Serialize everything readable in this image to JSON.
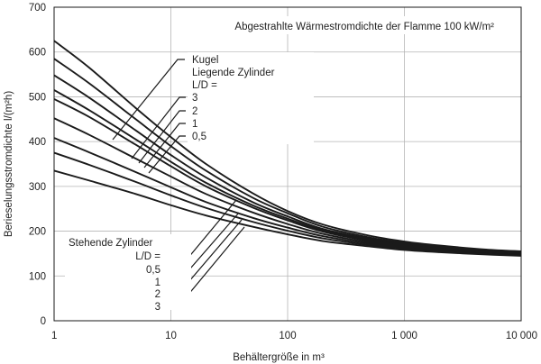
{
  "chart_data": {
    "type": "line",
    "title": "Abgestrahlte Wärmestromdichte der Flamme 100 kW/m²",
    "xlabel": "Behältergröße in m³",
    "ylabel": "Berieselungsstromdichte l/(m²h)",
    "xscale": "log",
    "xlim": [
      1,
      10000
    ],
    "ylim": [
      0,
      700
    ],
    "grid": true,
    "x_ticks": [
      {
        "value": 1,
        "label": "1"
      },
      {
        "value": 10,
        "label": "10"
      },
      {
        "value": 100,
        "label": "100"
      },
      {
        "value": 1000,
        "label": "1 000"
      },
      {
        "value": 10000,
        "label": "10 000"
      }
    ],
    "y_ticks": [
      {
        "value": 0,
        "label": "0"
      },
      {
        "value": 100,
        "label": "100"
      },
      {
        "value": 200,
        "label": "200"
      },
      {
        "value": 300,
        "label": "300"
      },
      {
        "value": 400,
        "label": "400"
      },
      {
        "value": 500,
        "label": "500"
      },
      {
        "value": 600,
        "label": "600"
      },
      {
        "value": 700,
        "label": "700"
      }
    ],
    "x": [
      1,
      2,
      5,
      10,
      20,
      50,
      100,
      200,
      500,
      1000,
      2000,
      5000,
      10000
    ],
    "series": [
      {
        "name": "Kugel",
        "values": [
          625,
          565,
          475,
          410,
          350,
          285,
          245,
          215,
          190,
          177,
          168,
          159,
          155
        ]
      },
      {
        "name": "Liegende Zylinder L/D = 3",
        "values": [
          585,
          530,
          450,
          390,
          335,
          275,
          240,
          210,
          186,
          174,
          165,
          157,
          153
        ]
      },
      {
        "name": "Liegende Zylinder L/D = 2",
        "values": [
          548,
          498,
          425,
          370,
          320,
          265,
          233,
          205,
          183,
          171,
          163,
          155,
          151
        ]
      },
      {
        "name": "Liegende Zylinder L/D = 1",
        "values": [
          515,
          470,
          405,
          355,
          308,
          258,
          228,
          202,
          180,
          169,
          161,
          154,
          150
        ]
      },
      {
        "name": "Liegende Zylinder L/D = 0,5",
        "values": [
          495,
          455,
          393,
          345,
          300,
          253,
          224,
          199,
          178,
          167,
          160,
          153,
          149
        ]
      },
      {
        "name": "Stehende Zylinder L/D = 0,5",
        "values": [
          452,
          415,
          362,
          322,
          283,
          242,
          216,
          194,
          175,
          165,
          158,
          151,
          148
        ]
      },
      {
        "name": "Stehende Zylinder L/D = 1",
        "values": [
          408,
          376,
          332,
          298,
          265,
          230,
          208,
          189,
          172,
          163,
          156,
          150,
          147
        ]
      },
      {
        "name": "Stehende Zylinder L/D = 2",
        "values": [
          375,
          348,
          310,
          280,
          252,
          221,
          201,
          184,
          169,
          161,
          155,
          149,
          146
        ]
      },
      {
        "name": "Stehende Zylinder L/D = 3",
        "values": [
          335,
          313,
          283,
          258,
          235,
          210,
          193,
          178,
          166,
          158,
          153,
          148,
          145
        ]
      }
    ],
    "annotations": {
      "lying_heading_1": "Kugel",
      "lying_heading_2": "Liegende Zylinder",
      "lying_ld": "L/D =",
      "lying_labels": [
        "3",
        "2",
        "1",
        "0,5"
      ],
      "standing_heading": "Stehende Zylinder",
      "standing_ld": "L/D =",
      "standing_labels": [
        "0,5",
        "1",
        "2",
        "3"
      ]
    }
  }
}
